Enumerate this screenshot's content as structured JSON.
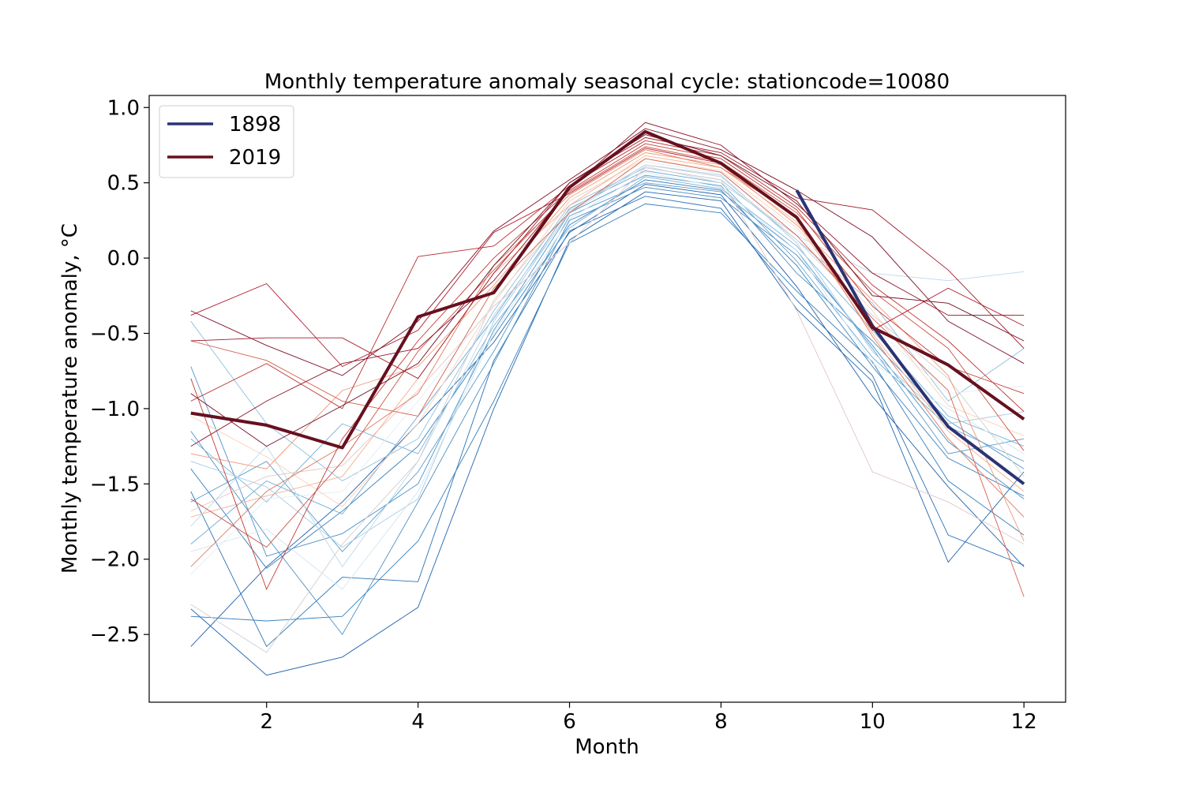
{
  "chart_data": {
    "type": "line",
    "title": "Monthly temperature anomaly seasonal cycle: stationcode=10080",
    "xlabel": "Month",
    "ylabel": "Monthly temperature anomaly, °C",
    "xlim": [
      0.45,
      12.55
    ],
    "ylim": [
      -2.95,
      1.08
    ],
    "xticks": [
      2,
      4,
      6,
      8,
      10,
      12
    ],
    "xtick_labels": [
      "2",
      "4",
      "6",
      "8",
      "10",
      "12"
    ],
    "yticks": [
      1.0,
      0.5,
      0.0,
      -0.5,
      -1.0,
      -1.5,
      -2.0,
      -2.5
    ],
    "ytick_labels": [
      "1.0",
      "0.5",
      "0.0",
      "−0.5",
      "−1.0",
      "−1.5",
      "−2.0",
      "−2.5"
    ],
    "legend": {
      "position": "upper-left",
      "entries": [
        {
          "label": "1898",
          "color": "#2a3375"
        },
        {
          "label": "2019",
          "color": "#67101f"
        }
      ]
    },
    "year_range": [
      1898,
      2019
    ],
    "colormap": "RdBu_r (blue = early years, red = recent years)",
    "highlighted_series": [
      {
        "name": "1898",
        "color": "#2a3375",
        "x": [
          9,
          10,
          11,
          12
        ],
        "values": [
          0.45,
          -0.45,
          -1.12,
          -1.5
        ]
      },
      {
        "name": "2019",
        "color": "#67101f",
        "x": [
          1,
          2,
          3,
          4,
          5,
          6,
          7,
          8,
          9,
          10,
          11,
          12
        ],
        "values": [
          -1.03,
          -1.11,
          -1.26,
          -0.39,
          -0.23,
          0.47,
          0.84,
          0.63,
          0.27,
          -0.46,
          -0.71,
          -1.07
        ]
      }
    ],
    "background_series": [
      {
        "color": "#1e5fa8",
        "values": [
          -2.58,
          -2.05,
          -1.62,
          -1.1,
          -0.56,
          0.17,
          0.49,
          0.42,
          -0.19,
          -0.92,
          -1.52,
          -2.05
        ]
      },
      {
        "color": "#1f64ad",
        "values": [
          -2.33,
          -2.77,
          -2.65,
          -2.32,
          -1.0,
          0.12,
          0.44,
          0.38,
          -0.34,
          -0.82,
          -2.02,
          -1.42
        ]
      },
      {
        "color": "#2a71b4",
        "values": [
          -1.55,
          -2.58,
          -2.12,
          -2.15,
          -0.68,
          0.18,
          0.41,
          0.33,
          -0.28,
          -0.78,
          -1.84,
          -2.04
        ]
      },
      {
        "color": "#3680bd",
        "values": [
          -2.38,
          -2.41,
          -2.38,
          -1.88,
          -0.95,
          0.1,
          0.36,
          0.3,
          -0.22,
          -0.69,
          -1.48,
          -1.84
        ]
      },
      {
        "color": "#3b7fba",
        "values": [
          -1.4,
          -2.06,
          -1.68,
          -1.25,
          -0.52,
          0.22,
          0.52,
          0.45,
          -0.05,
          -0.72,
          -1.33,
          -1.58
        ]
      },
      {
        "color": "#4a8fc4",
        "values": [
          -1.15,
          -1.85,
          -2.5,
          -1.62,
          -0.7,
          0.25,
          0.47,
          0.4,
          0.02,
          -0.58,
          -1.22,
          -1.6
        ]
      },
      {
        "color": "#4f93c6",
        "values": [
          -0.72,
          -1.98,
          -1.83,
          -1.5,
          -0.48,
          0.3,
          0.55,
          0.48,
          -0.1,
          -0.55,
          -1.08,
          -1.4
        ]
      },
      {
        "color": "#5a9ccc",
        "values": [
          -1.62,
          -1.35,
          -1.95,
          -1.42,
          -0.62,
          0.28,
          0.5,
          0.44,
          0.05,
          -0.6,
          -1.3,
          -1.2
        ]
      },
      {
        "color": "#6aa8d3",
        "values": [
          -1.9,
          -1.48,
          -1.7,
          -1.05,
          -0.4,
          0.33,
          0.58,
          0.5,
          -0.02,
          -0.66,
          -1.12,
          -1.35
        ]
      },
      {
        "color": "#7ab2d8",
        "values": [
          -1.2,
          -1.62,
          -1.1,
          -1.3,
          -0.45,
          0.2,
          0.54,
          0.46,
          0.08,
          -0.48,
          -1.05,
          -1.25
        ]
      },
      {
        "color": "#8fbfde",
        "values": [
          -0.42,
          -1.1,
          -1.48,
          -1.2,
          -0.35,
          0.35,
          0.6,
          0.52,
          0.12,
          -0.3,
          -0.95,
          -0.6
        ]
      },
      {
        "color": "#a6cce3",
        "values": [
          -1.35,
          -1.52,
          -1.92,
          -1.6,
          -0.42,
          0.31,
          0.62,
          0.55,
          0.1,
          -0.62,
          -1.1,
          -1.02
        ]
      },
      {
        "color": "#bcd8ea",
        "values": [
          -1.78,
          -1.25,
          -2.05,
          -1.35,
          -0.38,
          0.3,
          0.61,
          0.5,
          0.15,
          -0.1,
          -0.15,
          -0.09
        ]
      },
      {
        "color": "#d1e5f0",
        "values": [
          -1.95,
          -1.8,
          -2.2,
          -1.55,
          -0.5,
          0.26,
          0.57,
          0.47,
          0.05,
          -0.7,
          -1.0,
          -1.3
        ]
      },
      {
        "color": "#e3eef5",
        "values": [
          -2.1,
          -1.6,
          -1.55,
          -0.95,
          -0.3,
          0.38,
          0.64,
          0.56,
          0.18,
          -0.45,
          -0.9,
          -0.85
        ]
      },
      {
        "color": "#cfcfd2",
        "values": [
          -2.3,
          -2.62,
          -1.9,
          -1.35,
          -0.28,
          0.32,
          0.62,
          0.54,
          0.12,
          -0.38,
          -0.8,
          -1.45
        ]
      },
      {
        "color": "#e2c7c7",
        "values": [
          -1.68,
          -1.45,
          -1.38,
          -0.88,
          -0.32,
          0.1,
          0.6,
          0.52,
          -0.35,
          -1.42,
          -1.62,
          -1.9
        ]
      },
      {
        "color": "#fbd0b9",
        "values": [
          -1.05,
          -1.32,
          -1.65,
          -1.1,
          -0.3,
          0.38,
          0.66,
          0.58,
          0.2,
          -0.35,
          -0.98,
          -1.18
        ]
      },
      {
        "color": "#f6b08f",
        "values": [
          -1.72,
          -1.58,
          -1.45,
          -0.8,
          -0.1,
          0.35,
          0.68,
          0.6,
          0.24,
          -0.5,
          -1.15,
          -1.55
        ]
      },
      {
        "color": "#ee9a78",
        "values": [
          -1.3,
          -1.4,
          -0.88,
          -0.72,
          -0.18,
          0.4,
          0.7,
          0.62,
          0.22,
          -0.28,
          -0.78,
          -1.88
        ]
      },
      {
        "color": "#e07a5f",
        "values": [
          -2.05,
          -1.55,
          -1.25,
          -0.9,
          -0.05,
          0.42,
          0.72,
          0.6,
          0.28,
          -0.52,
          -1.2,
          -1.72
        ]
      },
      {
        "color": "#d6604d",
        "values": [
          -0.55,
          -0.68,
          -0.95,
          -1.05,
          -0.2,
          0.3,
          0.66,
          0.57,
          0.15,
          -0.4,
          -0.88,
          -2.25
        ]
      },
      {
        "color": "#cd5444",
        "values": [
          -1.6,
          -1.92,
          -1.35,
          -0.62,
          -0.08,
          0.44,
          0.74,
          0.64,
          0.3,
          -0.22,
          -0.6,
          -1.28
        ]
      },
      {
        "color": "#c13b35",
        "values": [
          -0.8,
          -2.2,
          -1.2,
          -0.55,
          0.0,
          0.45,
          0.76,
          0.66,
          0.32,
          -0.32,
          -0.72,
          -0.9
        ]
      },
      {
        "color": "#b8302f",
        "values": [
          -0.95,
          -0.7,
          -1.0,
          0.01,
          0.08,
          0.48,
          0.78,
          0.68,
          0.34,
          -0.18,
          -0.55,
          -1.02
        ]
      },
      {
        "color": "#b2182b",
        "values": [
          -0.38,
          -0.17,
          -0.72,
          -0.48,
          0.17,
          0.43,
          0.73,
          0.63,
          0.28,
          -0.48,
          -0.2,
          -0.45
        ]
      },
      {
        "color": "#a01a2b",
        "values": [
          -0.55,
          -0.53,
          -0.53,
          -0.8,
          -0.1,
          0.5,
          0.8,
          0.7,
          0.4,
          0.32,
          -0.08,
          -0.6
        ]
      },
      {
        "color": "#8f1429",
        "values": [
          -1.25,
          -0.95,
          -0.7,
          -0.6,
          -0.15,
          0.46,
          0.9,
          0.75,
          0.36,
          -0.1,
          -0.38,
          -0.38
        ]
      },
      {
        "color": "#7e1026",
        "values": [
          -0.35,
          -0.58,
          -0.78,
          -0.42,
          0.18,
          0.52,
          0.86,
          0.72,
          0.45,
          0.14,
          -0.42,
          -0.7
        ]
      },
      {
        "color": "#6f0d22",
        "values": [
          -0.9,
          -1.25,
          -0.98,
          -0.7,
          -0.05,
          0.5,
          0.82,
          0.68,
          0.38,
          -0.25,
          -0.3,
          -0.55
        ]
      }
    ]
  }
}
